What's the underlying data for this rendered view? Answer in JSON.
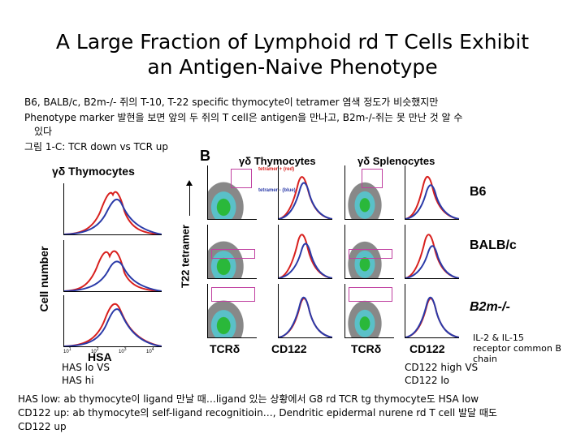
{
  "title_line1": "A Large Fraction of Lymphoid rd T Cells Exhibit",
  "title_line2": "an Antigen-Naive Phenotype",
  "notes": {
    "line1": "B6, BALB/c, B2m-/- 쥐의 T-10, T-22 specific thymocyte이 tetramer 염색 정도가 비슷했지만",
    "line2": "Phenotype marker 발현을 보면 앞의 두 쥐의 T cell은 antigen을 만나고, B2m-/-쥐는 못 만난 것 알 수",
    "line3": "있다",
    "line4": "그림 1-C: TCR down vs TCR up"
  },
  "figure": {
    "panel_letter": "B",
    "left_panel_title": "γδ Thymocytes",
    "left_ylabel": "Cell number",
    "left_xlabel": "HSA",
    "mid_title": "γδ Thymocytes",
    "right_title": "γδ Splenocytes",
    "mid_ylabel": "T22 tetramer",
    "legend_pos": "tetramer + (red)",
    "legend_neg": "tetramer - (blue)",
    "row_labels": [
      "B6",
      "BALB/c",
      "B2m-/-"
    ],
    "col_xlabels": [
      "TCRδ",
      "CD122",
      "TCRδ",
      "CD122"
    ],
    "tick_10": "10",
    "tick_exps": [
      "1",
      "2",
      "3",
      "4"
    ],
    "colors": {
      "red": "#d8201e",
      "blue": "#2a3aa8",
      "box": "#c040a0"
    }
  },
  "annotations": {
    "has_lo": "HAS lo VS",
    "has_hi": "HAS hi",
    "cd122_high": "CD122 high VS",
    "cd122_lo": "CD122 lo",
    "il_note_1": "IL-2 & IL-15",
    "il_note_2": "receptor common B",
    "il_note_3": "chain"
  },
  "footer": {
    "line1": "HAS low: ab thymocyte이 ligand 만날 때…ligand 있는 상황에서 G8 rd TCR tg thymocyte도 HSA low",
    "line2": "CD122 up: ab thymocyte의 self-ligand recognitioin…, Dendritic epidermal nurene rd T cell 발달 때도",
    "line3": "CD122 up"
  }
}
